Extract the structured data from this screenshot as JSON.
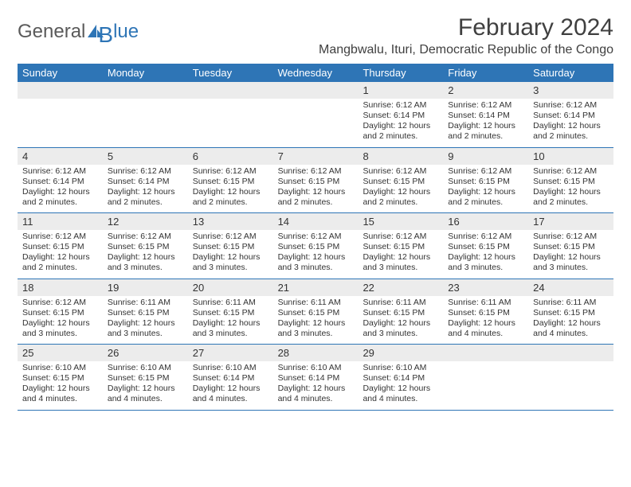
{
  "logo": {
    "text_main": "General",
    "text_accent": "lue",
    "color_main": "#5a5a5a",
    "color_accent": "#2e75b6"
  },
  "title": "February 2024",
  "subtitle": "Mangbwalu, Ituri, Democratic Republic of the Congo",
  "colors": {
    "header_bg": "#2e75b6",
    "header_fg": "#ffffff",
    "daynum_bg": "#ececec",
    "border": "#2e75b6",
    "text": "#333333"
  },
  "fontsize": {
    "title": 30,
    "subtitle": 16,
    "dow": 13,
    "daynum": 13,
    "body": 10.5
  },
  "days_of_week": [
    "Sunday",
    "Monday",
    "Tuesday",
    "Wednesday",
    "Thursday",
    "Friday",
    "Saturday"
  ],
  "weeks": [
    [
      {
        "n": "",
        "s": "",
        "t": "",
        "d": ""
      },
      {
        "n": "",
        "s": "",
        "t": "",
        "d": ""
      },
      {
        "n": "",
        "s": "",
        "t": "",
        "d": ""
      },
      {
        "n": "",
        "s": "",
        "t": "",
        "d": ""
      },
      {
        "n": "1",
        "s": "Sunrise: 6:12 AM",
        "t": "Sunset: 6:14 PM",
        "d": "Daylight: 12 hours and 2 minutes."
      },
      {
        "n": "2",
        "s": "Sunrise: 6:12 AM",
        "t": "Sunset: 6:14 PM",
        "d": "Daylight: 12 hours and 2 minutes."
      },
      {
        "n": "3",
        "s": "Sunrise: 6:12 AM",
        "t": "Sunset: 6:14 PM",
        "d": "Daylight: 12 hours and 2 minutes."
      }
    ],
    [
      {
        "n": "4",
        "s": "Sunrise: 6:12 AM",
        "t": "Sunset: 6:14 PM",
        "d": "Daylight: 12 hours and 2 minutes."
      },
      {
        "n": "5",
        "s": "Sunrise: 6:12 AM",
        "t": "Sunset: 6:14 PM",
        "d": "Daylight: 12 hours and 2 minutes."
      },
      {
        "n": "6",
        "s": "Sunrise: 6:12 AM",
        "t": "Sunset: 6:15 PM",
        "d": "Daylight: 12 hours and 2 minutes."
      },
      {
        "n": "7",
        "s": "Sunrise: 6:12 AM",
        "t": "Sunset: 6:15 PM",
        "d": "Daylight: 12 hours and 2 minutes."
      },
      {
        "n": "8",
        "s": "Sunrise: 6:12 AM",
        "t": "Sunset: 6:15 PM",
        "d": "Daylight: 12 hours and 2 minutes."
      },
      {
        "n": "9",
        "s": "Sunrise: 6:12 AM",
        "t": "Sunset: 6:15 PM",
        "d": "Daylight: 12 hours and 2 minutes."
      },
      {
        "n": "10",
        "s": "Sunrise: 6:12 AM",
        "t": "Sunset: 6:15 PM",
        "d": "Daylight: 12 hours and 2 minutes."
      }
    ],
    [
      {
        "n": "11",
        "s": "Sunrise: 6:12 AM",
        "t": "Sunset: 6:15 PM",
        "d": "Daylight: 12 hours and 2 minutes."
      },
      {
        "n": "12",
        "s": "Sunrise: 6:12 AM",
        "t": "Sunset: 6:15 PM",
        "d": "Daylight: 12 hours and 3 minutes."
      },
      {
        "n": "13",
        "s": "Sunrise: 6:12 AM",
        "t": "Sunset: 6:15 PM",
        "d": "Daylight: 12 hours and 3 minutes."
      },
      {
        "n": "14",
        "s": "Sunrise: 6:12 AM",
        "t": "Sunset: 6:15 PM",
        "d": "Daylight: 12 hours and 3 minutes."
      },
      {
        "n": "15",
        "s": "Sunrise: 6:12 AM",
        "t": "Sunset: 6:15 PM",
        "d": "Daylight: 12 hours and 3 minutes."
      },
      {
        "n": "16",
        "s": "Sunrise: 6:12 AM",
        "t": "Sunset: 6:15 PM",
        "d": "Daylight: 12 hours and 3 minutes."
      },
      {
        "n": "17",
        "s": "Sunrise: 6:12 AM",
        "t": "Sunset: 6:15 PM",
        "d": "Daylight: 12 hours and 3 minutes."
      }
    ],
    [
      {
        "n": "18",
        "s": "Sunrise: 6:12 AM",
        "t": "Sunset: 6:15 PM",
        "d": "Daylight: 12 hours and 3 minutes."
      },
      {
        "n": "19",
        "s": "Sunrise: 6:11 AM",
        "t": "Sunset: 6:15 PM",
        "d": "Daylight: 12 hours and 3 minutes."
      },
      {
        "n": "20",
        "s": "Sunrise: 6:11 AM",
        "t": "Sunset: 6:15 PM",
        "d": "Daylight: 12 hours and 3 minutes."
      },
      {
        "n": "21",
        "s": "Sunrise: 6:11 AM",
        "t": "Sunset: 6:15 PM",
        "d": "Daylight: 12 hours and 3 minutes."
      },
      {
        "n": "22",
        "s": "Sunrise: 6:11 AM",
        "t": "Sunset: 6:15 PM",
        "d": "Daylight: 12 hours and 3 minutes."
      },
      {
        "n": "23",
        "s": "Sunrise: 6:11 AM",
        "t": "Sunset: 6:15 PM",
        "d": "Daylight: 12 hours and 4 minutes."
      },
      {
        "n": "24",
        "s": "Sunrise: 6:11 AM",
        "t": "Sunset: 6:15 PM",
        "d": "Daylight: 12 hours and 4 minutes."
      }
    ],
    [
      {
        "n": "25",
        "s": "Sunrise: 6:10 AM",
        "t": "Sunset: 6:15 PM",
        "d": "Daylight: 12 hours and 4 minutes."
      },
      {
        "n": "26",
        "s": "Sunrise: 6:10 AM",
        "t": "Sunset: 6:15 PM",
        "d": "Daylight: 12 hours and 4 minutes."
      },
      {
        "n": "27",
        "s": "Sunrise: 6:10 AM",
        "t": "Sunset: 6:14 PM",
        "d": "Daylight: 12 hours and 4 minutes."
      },
      {
        "n": "28",
        "s": "Sunrise: 6:10 AM",
        "t": "Sunset: 6:14 PM",
        "d": "Daylight: 12 hours and 4 minutes."
      },
      {
        "n": "29",
        "s": "Sunrise: 6:10 AM",
        "t": "Sunset: 6:14 PM",
        "d": "Daylight: 12 hours and 4 minutes."
      },
      {
        "n": "",
        "s": "",
        "t": "",
        "d": ""
      },
      {
        "n": "",
        "s": "",
        "t": "",
        "d": ""
      }
    ]
  ]
}
